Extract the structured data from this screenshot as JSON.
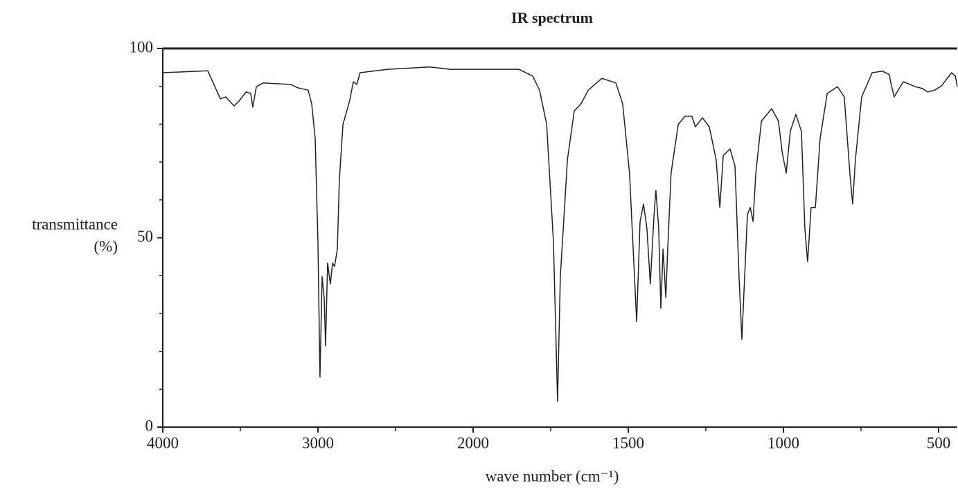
{
  "chart_data": {
    "type": "line",
    "title": "IR spectrum",
    "xlabel": "wave number (cm⁻¹)",
    "ylabel": [
      "transmittance",
      "(%)"
    ],
    "xscale": "piecewise",
    "xlim": [
      4000,
      440
    ],
    "xticks": [
      4000,
      3000,
      2000,
      1500,
      1000,
      500
    ],
    "xminorticks": [
      3500,
      2500,
      1750,
      1250,
      750
    ],
    "ylim": [
      0,
      100
    ],
    "yticks": [
      0,
      50,
      100
    ],
    "yminorticks": [
      10,
      20,
      30,
      40,
      60,
      70,
      80,
      90
    ],
    "color": "#231f20",
    "x": [
      4000,
      3710,
      3629,
      3594,
      3540,
      3509,
      3464,
      3433,
      3420,
      3397,
      3353,
      3174,
      3130,
      3063,
      3040,
      3018,
      3000,
      2987,
      2973,
      2960,
      2951,
      2938,
      2920,
      2906,
      2893,
      2875,
      2862,
      2839,
      2795,
      2772,
      2750,
      2728,
      2549,
      2281,
      2147,
      2000,
      1853,
      1808,
      1786,
      1763,
      1741,
      1728,
      1719,
      1696,
      1674,
      1652,
      1629,
      1585,
      1540,
      1518,
      1496,
      1473,
      1462,
      1451,
      1440,
      1429,
      1417,
      1411,
      1402,
      1395,
      1388,
      1379,
      1373,
      1362,
      1339,
      1317,
      1295,
      1284,
      1261,
      1239,
      1217,
      1205,
      1194,
      1172,
      1156,
      1143,
      1134,
      1125,
      1116,
      1107,
      1098,
      1089,
      1071,
      1038,
      1016,
      1004,
      991,
      978,
      960,
      942,
      931,
      922,
      911,
      897,
      882,
      859,
      826,
      804,
      786,
      777,
      768,
      748,
      714,
      681,
      659,
      654,
      643,
      614,
      592,
      576,
      551,
      536,
      513,
      491,
      458,
      446,
      440
    ],
    "y": [
      93.6,
      94.1,
      86.7,
      87.2,
      84.8,
      86.1,
      88.5,
      88.1,
      84.5,
      89.9,
      90.9,
      90.5,
      89.6,
      89.0,
      85.4,
      76.2,
      48.8,
      13.2,
      39.7,
      34.2,
      21.4,
      43.3,
      37.8,
      43.3,
      42.4,
      47.0,
      65.3,
      79.9,
      86.3,
      91.2,
      90.5,
      93.6,
      94.5,
      95.1,
      94.5,
      94.5,
      94.5,
      92.7,
      89.0,
      79.9,
      48.8,
      6.8,
      39.7,
      70.7,
      83.5,
      85.4,
      89.0,
      92.1,
      90.9,
      85.4,
      67.1,
      27.8,
      54.3,
      58.9,
      52.5,
      37.8,
      56.1,
      62.5,
      52.5,
      31.4,
      47.0,
      34.2,
      47.0,
      67.1,
      79.9,
      82.1,
      82.1,
      79.3,
      81.7,
      79.3,
      70.7,
      58.0,
      71.7,
      73.5,
      68.9,
      39.7,
      23.2,
      39.7,
      56.1,
      58.0,
      54.3,
      67.1,
      80.8,
      84.1,
      80.8,
      72.6,
      67.1,
      78.1,
      82.6,
      78.1,
      52.5,
      43.7,
      58.0,
      58.0,
      76.2,
      88.1,
      89.9,
      87.2,
      67.1,
      58.9,
      70.7,
      87.2,
      93.6,
      94.0,
      93.1,
      90.9,
      87.2,
      91.2,
      90.5,
      89.9,
      89.4,
      88.5,
      89.0,
      90.1,
      93.6,
      92.7,
      89.9
    ]
  }
}
